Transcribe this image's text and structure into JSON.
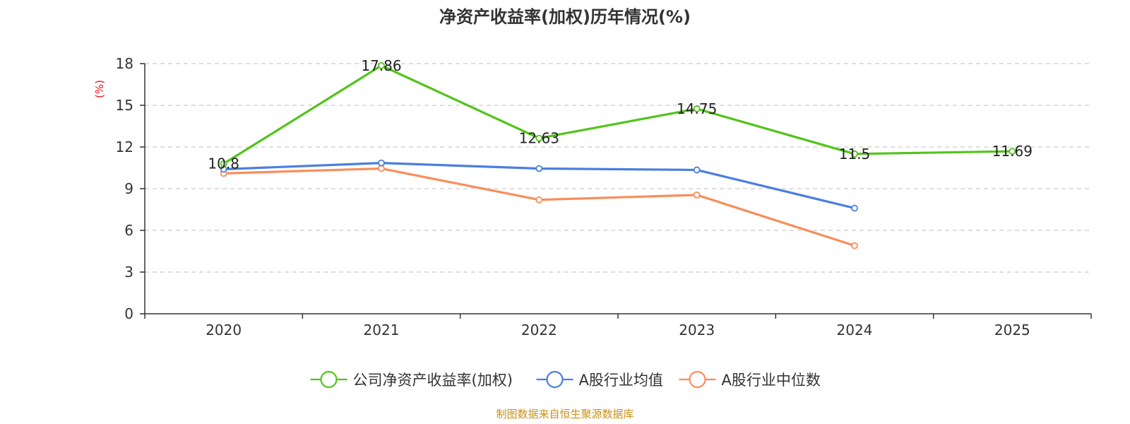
{
  "chart_data": {
    "type": "line",
    "title": "净资产收益率(加权)历年情况(%)",
    "ylabel": "(%)",
    "xlabel": "",
    "categories": [
      "2020",
      "2021",
      "2022",
      "2023",
      "2024",
      "2025"
    ],
    "ylim": [
      0,
      18
    ],
    "yticks": [
      0,
      3,
      6,
      9,
      12,
      15,
      18
    ],
    "grid": true,
    "legend_position": "bottom",
    "series": [
      {
        "name": "公司净资产收益率(加权)",
        "color": "#52c41a",
        "values": [
          10.8,
          17.86,
          12.63,
          14.75,
          11.5,
          11.69
        ],
        "labels": [
          "10.8",
          "17.86",
          "12.63",
          "14.75",
          "11.5",
          "11.69"
        ],
        "show_labels": true
      },
      {
        "name": "A股行业均值",
        "color": "#4a7fe0",
        "values": [
          10.4,
          10.85,
          10.45,
          10.35,
          7.6,
          null
        ],
        "show_labels": false
      },
      {
        "name": "A股行业中位数",
        "color": "#f98d5a",
        "values": [
          10.1,
          10.45,
          8.2,
          8.55,
          4.9,
          null
        ],
        "show_labels": false
      }
    ],
    "source": "制图数据来自恒生聚源数据库",
    "title_color": "#333333",
    "unit_color": "#e8101a",
    "source_color": "#c8901a",
    "grid_color": "#cccccc",
    "axis_color": "#333333"
  }
}
